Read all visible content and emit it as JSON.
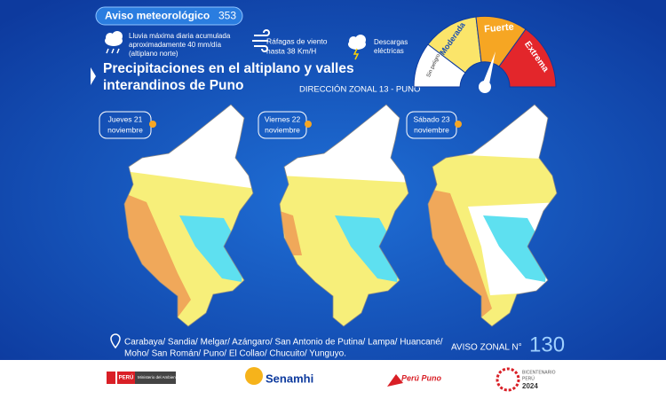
{
  "header": {
    "notice_label": "Aviso meteorológico",
    "notice_number": "353",
    "rain": [
      "Lluvia  máxima diaria acumulada",
      "aproximadamente  40 mm/día",
      "(altiplano norte)"
    ],
    "wind": [
      "Ráfagas de viento",
      "hasta 38 Km/H"
    ],
    "storm": [
      "Descargas",
      "eléctricas"
    ],
    "title": [
      "Precipitaciones en el altiplano y valles",
      "interandinos de Puno"
    ],
    "office": "DIRECCIÓN ZONAL 13 - PUNO"
  },
  "gauge": {
    "levels": [
      "Sin peligro",
      "Moderada",
      "Fuerte",
      "Extrema"
    ]
  },
  "days": [
    [
      "Jueves 21",
      "noviembre"
    ],
    [
      "Viernes 22",
      "noviembre"
    ],
    [
      "Sábado 23",
      "noviembre"
    ]
  ],
  "provinces": [
    "Carabaya/ Sandia/ Melgar/ Azángaro/ San Antonio de Putina/ Lampa/ Huancané/",
    "Moho/ San Román/ Puno/ El Collao/ Chucuito/ Yunguyo."
  ],
  "notice_zone": {
    "label": "AVISO ZONAL N°",
    "number": "130"
  },
  "footer": {
    "country": "PERÚ",
    "ministry": "Ministerio del Ambiente",
    "agency": "Senamhi",
    "region": "Perú Puno",
    "bicentennial": [
      "BICENTENARIO",
      "PERÚ",
      "2024"
    ]
  }
}
